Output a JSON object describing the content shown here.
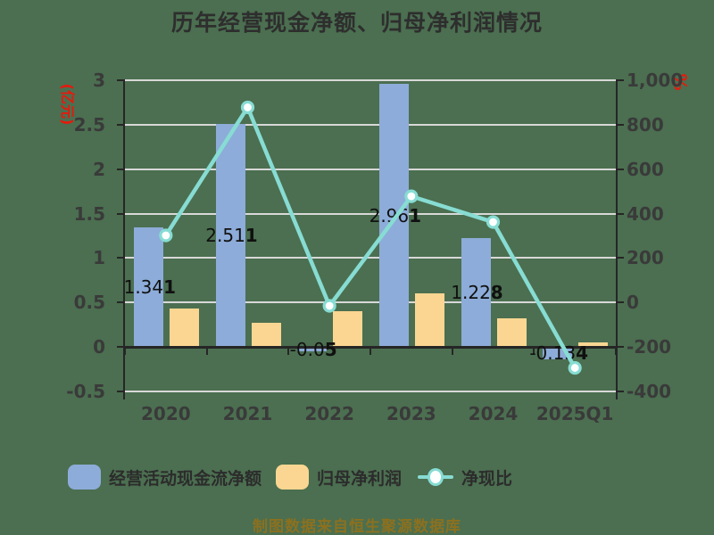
{
  "title": "历年经营现金净额、归母净利润情况",
  "source_note": "制图数据来自恒生聚源数据库",
  "colors": {
    "background": "#4b6f50",
    "bar_operating_cashflow": "#8dacd9",
    "bar_net_profit": "#fad692",
    "line_net_cash_ratio": "#87dcd3",
    "marker_fill": "#ffffff",
    "axis_unit_text": "#e8180c",
    "gridline": "#d8d8d8",
    "axis_line": "#262626",
    "tick_text": "#3a3a3a",
    "value_label_text": "#101010",
    "title_text": "#2e2e2e",
    "legend_text": "#2c2c2c",
    "source_text": "#8c701f"
  },
  "left_axis": {
    "unit": "(亿元)",
    "ticks": [
      "3",
      "2.5",
      "2",
      "1.5",
      "1",
      "0.5",
      "0",
      "-0.5"
    ],
    "tick_values": [
      3,
      2.5,
      2,
      1.5,
      1,
      0.5,
      0,
      -0.5
    ]
  },
  "right_axis": {
    "unit": "%",
    "ticks": [
      "1,000",
      "800",
      "600",
      "400",
      "200",
      "0",
      "-200",
      "-400"
    ],
    "tick_values": [
      1000,
      800,
      600,
      400,
      200,
      0,
      -200,
      -400
    ]
  },
  "legend": [
    {
      "label": "经营活动现金流净额",
      "symbol": "blue-rounded-swatch"
    },
    {
      "label": "归母净利润",
      "symbol": "yellow-rounded-swatch"
    },
    {
      "label": "净现比",
      "symbol": "teal-line-with-circle-marker"
    }
  ],
  "chart_data": {
    "type": "combo",
    "title": "历年经营现金净额、归母净利润情况",
    "categories": [
      "2020",
      "2021",
      "2022",
      "2023",
      "2024",
      "2025Q1"
    ],
    "series": [
      {
        "name": "经营活动现金流净额",
        "type": "bar",
        "y_axis": "left",
        "unit": "亿元",
        "color": "#8dacd9",
        "values": [
          1.341,
          2.511,
          -0.05,
          2.961,
          1.228,
          -0.134
        ],
        "value_labels": [
          "1.341",
          "2.511",
          "-0.05",
          "2.961",
          "1.228",
          "-0.134"
        ]
      },
      {
        "name": "归母净利润",
        "type": "bar",
        "y_axis": "left",
        "unit": "亿元",
        "color": "#fad692",
        "values": [
          0.43,
          0.27,
          0.4,
          0.6,
          0.32,
          0.05
        ]
      },
      {
        "name": "净现比",
        "type": "line",
        "y_axis": "right",
        "unit": "%",
        "color": "#87dcd3",
        "values": [
          302,
          878,
          -15,
          478,
          362,
          -294
        ]
      }
    ],
    "left_ylabel": "(亿元)",
    "right_ylabel": "%",
    "left_ylim": [
      -0.5,
      3
    ],
    "right_ylim": [
      -400,
      1000
    ],
    "grid": true,
    "legend_position": "bottom"
  }
}
